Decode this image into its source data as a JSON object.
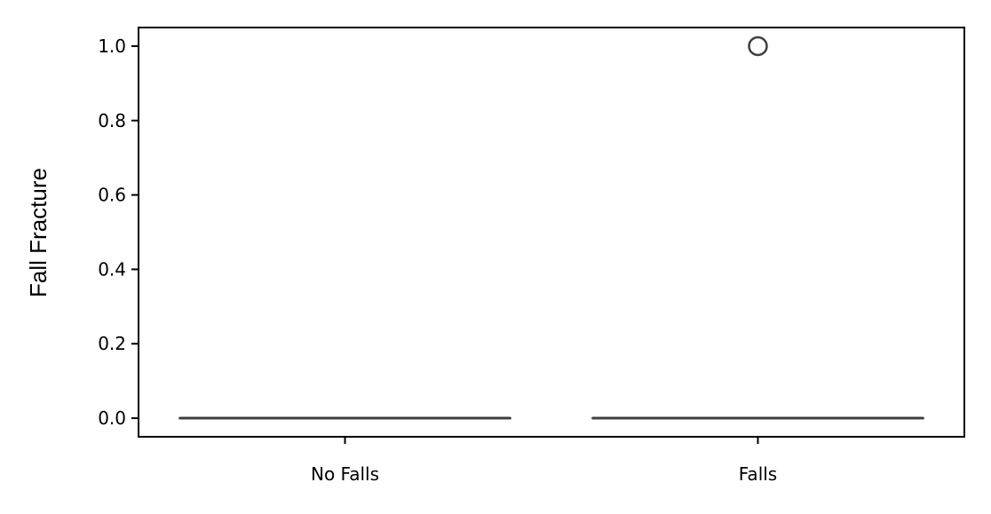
{
  "chart_data": {
    "type": "box",
    "title": "",
    "xlabel": "",
    "ylabel": "Fall Fracture",
    "ylim": [
      -0.05,
      1.05
    ],
    "categories": [
      "No Falls",
      "Falls"
    ],
    "yticks": [
      0.0,
      0.2,
      0.4,
      0.6,
      0.8,
      1.0
    ],
    "ytick_labels": [
      "0.0",
      "0.2",
      "0.4",
      "0.6",
      "0.8",
      "1.0"
    ],
    "boxes": [
      {
        "category": "No Falls",
        "min": 0.0,
        "q1": 0.0,
        "median": 0.0,
        "q3": 0.0,
        "max": 0.0,
        "outliers": []
      },
      {
        "category": "Falls",
        "min": 0.0,
        "q1": 0.0,
        "median": 0.0,
        "q3": 0.0,
        "max": 0.0,
        "outliers": [
          1.0
        ]
      }
    ],
    "grid": false,
    "colors": {
      "box_line": "#3f3f3f",
      "axes": "#000000"
    }
  }
}
